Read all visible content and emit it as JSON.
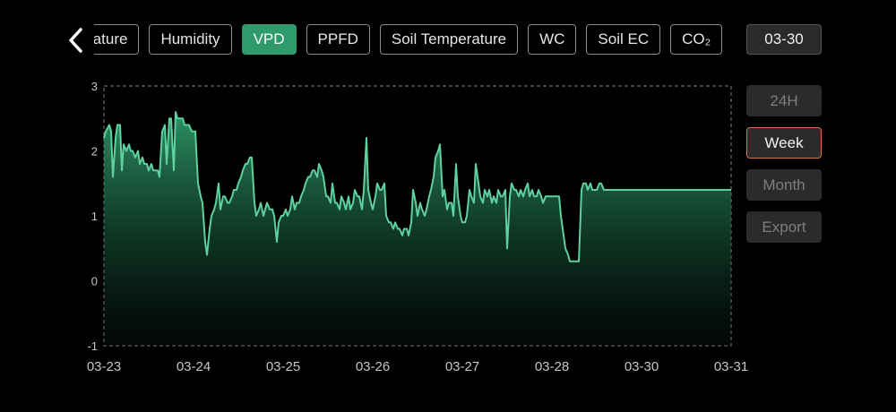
{
  "nav": {
    "tabs": [
      {
        "label": "Temperature",
        "active": false
      },
      {
        "label": "Humidity",
        "active": false
      },
      {
        "label": "VPD",
        "active": true
      },
      {
        "label": "PPFD",
        "active": false
      },
      {
        "label": "Soil Temperature",
        "active": false
      },
      {
        "label": "WC",
        "active": false
      },
      {
        "label": "Soil EC",
        "active": false
      },
      {
        "label": "CO₂",
        "active": false
      }
    ],
    "date": "03-30"
  },
  "range_buttons": [
    {
      "label": "24H",
      "active": false
    },
    {
      "label": "Week",
      "active": true
    },
    {
      "label": "Month",
      "active": false
    },
    {
      "label": "Export",
      "active": false
    }
  ],
  "colors": {
    "accent": "#2f9a6b",
    "line": "#5fd0a0",
    "active_outline": "#d9734a"
  },
  "chart_data": {
    "type": "area",
    "ylim": [
      -1,
      3
    ],
    "yticks": [
      "3",
      "2",
      "1",
      "0",
      "-1"
    ],
    "xticks": [
      "03-23",
      "03-24",
      "03-25",
      "03-26",
      "03-27",
      "03-28",
      "03-30",
      "03-31"
    ],
    "grid": "dashed border only",
    "series": [
      {
        "x": [
          0,
          0.02,
          0.06,
          0.08,
          0.1,
          0.13,
          0.15,
          0.18,
          0.2,
          0.22,
          0.25,
          0.28,
          0.3,
          0.32,
          0.35,
          0.38,
          0.4,
          0.43,
          0.45,
          0.48,
          0.5,
          0.53,
          0.55,
          0.58,
          0.6,
          0.62,
          0.65,
          0.68,
          0.7,
          0.73,
          0.75,
          0.78,
          0.8,
          0.82,
          0.85,
          0.88,
          0.9,
          0.92,
          0.95,
          0.98,
          1.0,
          1.02,
          1.05,
          1.08,
          1.1,
          1.13,
          1.15,
          1.18,
          1.2,
          1.23,
          1.25,
          1.28,
          1.3,
          1.33,
          1.35,
          1.38,
          1.4,
          1.43,
          1.45,
          1.48,
          1.5,
          1.53,
          1.55,
          1.58,
          1.6,
          1.63,
          1.65,
          1.68,
          1.7,
          1.73,
          1.75,
          1.78,
          1.8,
          1.82,
          1.85,
          1.88,
          1.9,
          1.93,
          1.95,
          1.98,
          2.0,
          2.03,
          2.05,
          2.08,
          2.1,
          2.13,
          2.15,
          2.18,
          2.2,
          2.23,
          2.25,
          2.28,
          2.3,
          2.33,
          2.35,
          2.38,
          2.4,
          2.43,
          2.45,
          2.48,
          2.5,
          2.53,
          2.55,
          2.58,
          2.6,
          2.63,
          2.65,
          2.68,
          2.7,
          2.73,
          2.75,
          2.78,
          2.8,
          2.83,
          2.85,
          2.88,
          2.9,
          2.93,
          2.95,
          2.98,
          3.0,
          3.03,
          3.05,
          3.08,
          3.1,
          3.13,
          3.15,
          3.18,
          3.2,
          3.23,
          3.25,
          3.28,
          3.3,
          3.33,
          3.35,
          3.38,
          3.4,
          3.43,
          3.45,
          3.48,
          3.5,
          3.53,
          3.55,
          3.58,
          3.6,
          3.63,
          3.65,
          3.68,
          3.7,
          3.73,
          3.75,
          3.78,
          3.8,
          3.83,
          3.85,
          3.88,
          3.9,
          3.93,
          3.95,
          3.98,
          4.0,
          4.03,
          4.05,
          4.08,
          4.1,
          4.13,
          4.15,
          4.18,
          4.2,
          4.23,
          4.25,
          4.28,
          4.3,
          4.33,
          4.35,
          4.38,
          4.4,
          4.43,
          4.45,
          4.48,
          4.5,
          4.53,
          4.55,
          4.58,
          4.6,
          4.63,
          4.65,
          4.68,
          4.7,
          4.73,
          4.75,
          4.78,
          4.8,
          4.83,
          4.85,
          4.88,
          4.9,
          4.93,
          4.95,
          4.98,
          5.0,
          5.03,
          5.05,
          5.08,
          5.1,
          5.13,
          5.15,
          5.18,
          5.2,
          5.23,
          5.25,
          5.28,
          5.3,
          5.33,
          5.35,
          5.38,
          5.4,
          5.43,
          5.45,
          5.48,
          5.5,
          5.53,
          5.55,
          5.58,
          5.6,
          5.63,
          5.65,
          5.68,
          5.7,
          5.73,
          5.75,
          5.78,
          5.8,
          5.83,
          5.85,
          5.88,
          5.9,
          5.93,
          5.95,
          5.98,
          6.0,
          6.03,
          6.05,
          6.08,
          6.1,
          6.13,
          6.15,
          6.18,
          6.2,
          6.23,
          6.25,
          6.28,
          6.3,
          6.33,
          6.35,
          6.38,
          6.4,
          6.43,
          6.45,
          6.48,
          6.5,
          6.53,
          6.55,
          6.58,
          6.6,
          6.63,
          6.65,
          6.68,
          6.7,
          6.73,
          6.75,
          6.78,
          6.8,
          6.83,
          6.85,
          6.88,
          6.9,
          6.93,
          6.95,
          6.98,
          7.0
        ],
        "y": [
          2.2,
          2.3,
          2.4,
          2.3,
          1.6,
          2.2,
          2.4,
          2.4,
          1.7,
          2.1,
          2.0,
          2.1,
          2.0,
          2.0,
          1.9,
          2.0,
          1.8,
          1.9,
          1.8,
          1.8,
          1.7,
          1.8,
          1.7,
          1.7,
          1.7,
          1.6,
          2.3,
          2.4,
          1.8,
          2.5,
          2.5,
          1.7,
          2.6,
          2.5,
          2.5,
          2.5,
          2.4,
          2.4,
          2.4,
          2.3,
          2.3,
          2.3,
          1.5,
          1.3,
          1.2,
          0.6,
          0.4,
          0.8,
          1.0,
          1.1,
          1.2,
          1.5,
          1.1,
          1.3,
          1.3,
          1.2,
          1.2,
          1.3,
          1.4,
          1.4,
          1.5,
          1.6,
          1.7,
          1.8,
          1.8,
          1.9,
          1.9,
          1.2,
          1.0,
          1.1,
          1.2,
          1.0,
          1.1,
          1.2,
          1.1,
          1.1,
          1.0,
          0.6,
          0.9,
          1.0,
          1.0,
          1.1,
          1.0,
          1.1,
          1.3,
          1.1,
          1.2,
          1.2,
          1.3,
          1.4,
          1.5,
          1.6,
          1.6,
          1.7,
          1.7,
          1.6,
          1.8,
          1.7,
          1.6,
          1.3,
          1.3,
          1.2,
          1.5,
          1.2,
          1.2,
          1.1,
          1.3,
          1.2,
          1.1,
          1.3,
          1.1,
          1.2,
          1.4,
          1.3,
          1.3,
          1.1,
          1.4,
          2.2,
          1.4,
          1.2,
          1.1,
          1.3,
          1.5,
          1.4,
          1.4,
          1.5,
          1.0,
          0.9,
          0.9,
          0.8,
          0.9,
          0.8,
          0.8,
          0.7,
          0.8,
          0.8,
          0.7,
          0.9,
          1.4,
          1.2,
          1.0,
          1.2,
          1.1,
          1.0,
          1.1,
          1.3,
          1.4,
          1.6,
          1.9,
          2.0,
          2.1,
          1.3,
          1.4,
          1.1,
          1.2,
          1.2,
          1.0,
          1.8,
          1.3,
          1.0,
          0.9,
          0.9,
          1.0,
          1.4,
          1.3,
          1.2,
          1.8,
          1.5,
          1.3,
          1.2,
          1.4,
          1.3,
          1.4,
          1.2,
          1.3,
          1.2,
          1.4,
          1.3,
          1.3,
          1.4,
          0.5,
          1.3,
          1.5,
          1.4,
          1.4,
          1.3,
          1.4,
          1.3,
          1.4,
          1.5,
          1.3,
          1.4,
          1.3,
          1.3,
          1.4,
          1.3,
          1.2,
          1.3,
          1.3,
          1.3,
          1.3,
          1.3,
          1.3,
          1.3,
          1.0,
          0.7,
          0.5,
          0.4,
          0.3,
          0.3,
          0.3,
          0.3,
          0.3,
          1.4,
          1.5,
          1.5,
          1.4,
          1.5,
          1.4,
          1.4,
          1.4,
          1.5,
          1.5,
          1.4,
          1.4,
          1.4,
          1.4,
          1.4,
          1.4,
          1.4,
          1.4,
          1.4,
          1.4,
          1.4,
          1.4,
          1.4,
          1.4,
          1.4,
          1.4,
          1.4,
          1.4,
          1.4,
          1.4,
          1.4,
          1.4,
          1.4,
          1.4,
          1.4,
          1.4,
          1.4,
          1.4,
          1.4,
          1.4,
          1.4,
          1.4,
          1.4,
          1.4,
          1.4,
          1.4,
          1.4,
          1.4,
          1.4,
          1.4,
          1.4,
          1.4,
          1.4,
          1.4,
          1.4,
          1.4,
          1.4,
          1.4,
          1.4,
          1.4,
          1.4,
          1.4,
          1.4,
          1.4,
          1.4,
          1.4,
          1.4,
          1.4
        ]
      }
    ]
  }
}
